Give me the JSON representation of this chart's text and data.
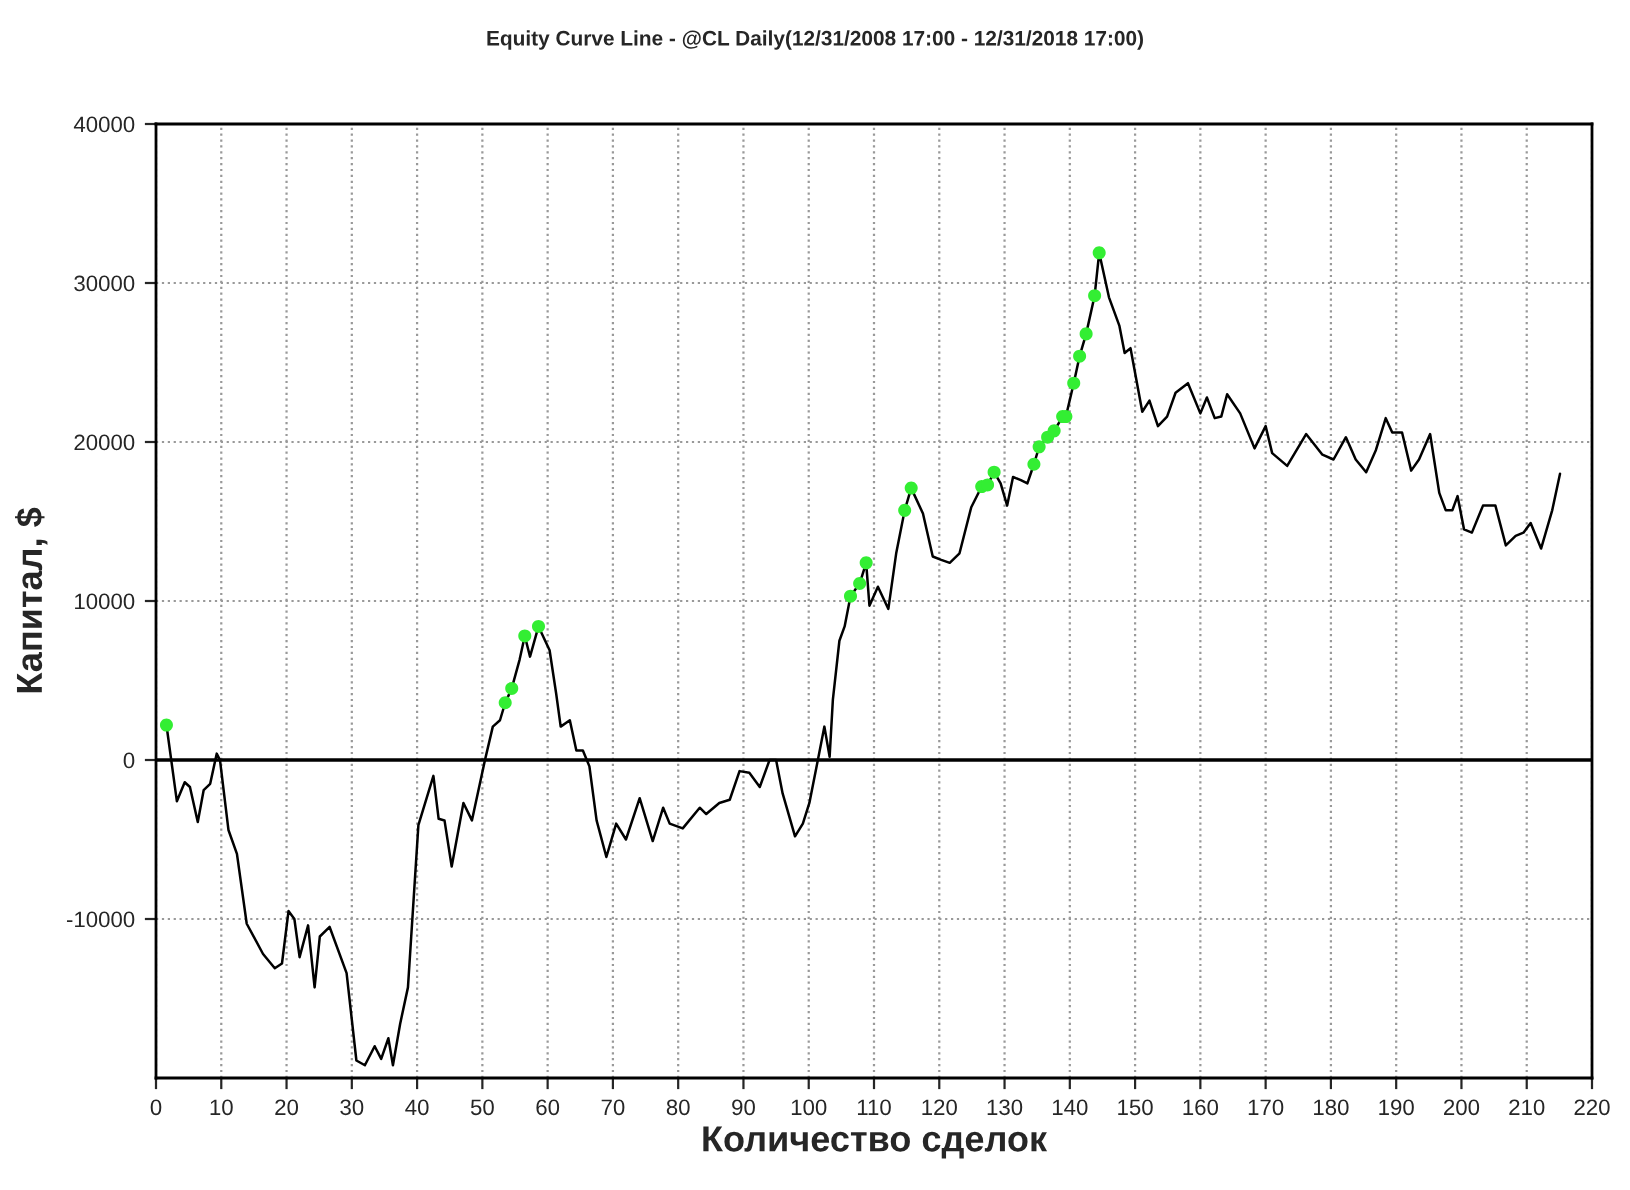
{
  "chart_data": {
    "type": "line",
    "title": "Equity Curve Line - @CL Daily(12/31/2008 17:00 - 12/31/2018 17:00)",
    "xlabel": "Количество сделок",
    "ylabel": "Капитал, $",
    "series": [
      {
        "color": "#000000",
        "marker": "none",
        "x": [
          1.6,
          3.2,
          4.4,
          5.2,
          6.4,
          7.3,
          8.3,
          9.3,
          9.8,
          11.1,
          12.4,
          13.9,
          16.4,
          18.2,
          19.3,
          20.3,
          21.2,
          22.0,
          23.3,
          24.3,
          25.1,
          26.6,
          29.2,
          30.7,
          32.0,
          33.5,
          34.5,
          35.6,
          36.3,
          37.4,
          38.6,
          40.2,
          42.5,
          43.3,
          44.2,
          45.3,
          47.1,
          48.4,
          50.4,
          51.6,
          52.7,
          53.5,
          54.5,
          55.7,
          56.5,
          57.3,
          58.6,
          60.3,
          61.3,
          62.0,
          63.4,
          64.4,
          65.4,
          66.4,
          67.5,
          69.0,
          70.5,
          72.0,
          74.1,
          76.1,
          77.7,
          78.7,
          80.7,
          83.3,
          84.3,
          86.3,
          87.9,
          89.4,
          90.9,
          92.5,
          94.0,
          95.0,
          96.0,
          97.9,
          99.1,
          100.1,
          101.4,
          102.4,
          103.2,
          103.7,
          104.7,
          105.5,
          106.4,
          107.8,
          108.8,
          109.3,
          110.6,
          112.2,
          113.4,
          114.7,
          115.7,
          117.5,
          119.0,
          120.2,
          121.6,
          123.1,
          124.9,
          126.5,
          127.4,
          128.4,
          129.4,
          130.4,
          131.3,
          132.5,
          133.5,
          134.5,
          135.3,
          136.6,
          137.6,
          138.9,
          139.4,
          140.6,
          141.5,
          142.5,
          143.8,
          144.5,
          146.0,
          147.6,
          148.4,
          149.3,
          151.1,
          152.2,
          153.5,
          154.9,
          156.2,
          158.1,
          160.0,
          161.0,
          162.2,
          163.2,
          164.1,
          166.1,
          168.3,
          170.0,
          171.0,
          173.3,
          176.2,
          178.7,
          180.4,
          182.3,
          183.8,
          185.4,
          186.9,
          188.4,
          189.4,
          190.9,
          192.3,
          193.5,
          195.2,
          196.6,
          197.6,
          198.6,
          199.4,
          200.4,
          201.6,
          203.3,
          205.2,
          206.8,
          208.3,
          209.5,
          210.6,
          212.2,
          213.9,
          215.1
        ],
        "values": [
          2200,
          -2600,
          -1400,
          -1700,
          -3900,
          -1900,
          -1500,
          400,
          0,
          -4400,
          -5900,
          -10300,
          -12200,
          -13100,
          -12800,
          -9500,
          -10000,
          -12400,
          -10400,
          -14300,
          -11100,
          -10500,
          -13400,
          -18900,
          -19200,
          -18000,
          -18800,
          -17500,
          -19200,
          -16600,
          -14300,
          -4100,
          -1000,
          -3700,
          -3800,
          -6700,
          -2700,
          -3800,
          0,
          2100,
          2500,
          3600,
          4500,
          6300,
          7800,
          6500,
          8400,
          6900,
          4200,
          2100,
          2500,
          600,
          600,
          -400,
          -3800,
          -6100,
          -4000,
          -5000,
          -2400,
          -5100,
          -3000,
          -4000,
          -4300,
          -3000,
          -3400,
          -2700,
          -2500,
          -700,
          -800,
          -1700,
          0,
          0,
          -2100,
          -4800,
          -4000,
          -2700,
          0,
          2100,
          200,
          3800,
          7500,
          8400,
          10300,
          11100,
          12400,
          9700,
          10900,
          9500,
          13000,
          15700,
          17100,
          15500,
          12800,
          12600,
          12400,
          13000,
          15900,
          17200,
          17300,
          18100,
          17400,
          16000,
          17800,
          17600,
          17400,
          18600,
          19700,
          20300,
          20700,
          21600,
          21600,
          23700,
          25400,
          26800,
          29200,
          31900,
          29100,
          27300,
          25600,
          25900,
          21900,
          22600,
          21000,
          21600,
          23100,
          23700,
          21800,
          22800,
          21500,
          21600,
          23000,
          21800,
          19600,
          21000,
          19300,
          18500,
          20500,
          19200,
          18900,
          20300,
          18900,
          18100,
          19500,
          21500,
          20600,
          20600,
          18200,
          18900,
          20500,
          16800,
          15700,
          15700,
          16600,
          14500,
          14300,
          16000,
          16000,
          13500,
          14100,
          14300,
          14900,
          13300,
          15700,
          18000
        ]
      },
      {
        "type": "scatter",
        "color": "#33ee33",
        "marker": "circle",
        "x": [
          1.6,
          53.5,
          54.5,
          56.5,
          58.6,
          106.4,
          107.8,
          108.8,
          114.7,
          115.7,
          126.5,
          127.4,
          128.4,
          134.5,
          135.3,
          136.6,
          137.6,
          138.9,
          139.4,
          140.6,
          141.5,
          142.5,
          143.8,
          144.5
        ],
        "values": [
          2200,
          3600,
          4500,
          7800,
          8400,
          10300,
          11100,
          12400,
          15700,
          17100,
          17200,
          17300,
          18100,
          18600,
          19700,
          20300,
          20700,
          21600,
          21600,
          23700,
          25400,
          26800,
          29200,
          31900
        ]
      }
    ],
    "xlim": [
      0,
      220
    ],
    "xticks": [
      0,
      10,
      20,
      30,
      40,
      50,
      60,
      70,
      80,
      90,
      100,
      110,
      120,
      130,
      140,
      150,
      160,
      170,
      180,
      190,
      200,
      210,
      220
    ],
    "ylim": [
      -20000,
      40000
    ],
    "yticks": [
      -10000,
      0,
      10000,
      20000,
      30000,
      40000
    ],
    "grid": true,
    "ref_lines": [
      {
        "axis": "y",
        "value": 0,
        "color": "#000000",
        "line_style": "solid"
      }
    ]
  }
}
